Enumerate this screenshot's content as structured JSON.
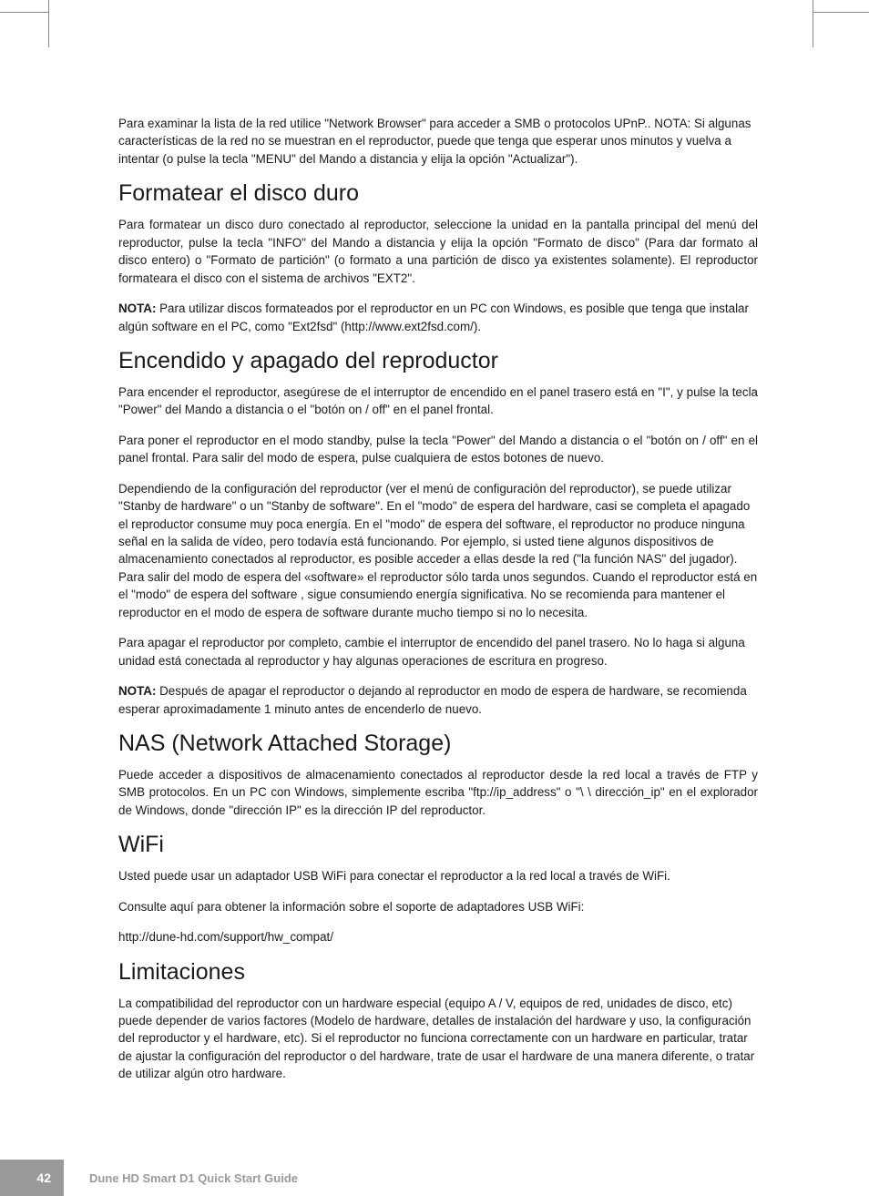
{
  "page": {
    "number": "42",
    "footer_title": "Dune HD Smart D1 Quick Start Guide",
    "background_color": "#ffffff",
    "text_color": "#1a1a1a",
    "footer_bg": "#9a9a9a",
    "footer_text": "#ffffff",
    "body_fontsize": 13.4,
    "heading_fontsize": 25
  },
  "intro": "Para examinar la lista de la red utilice \"Network Browser\" para acceder a SMB o protocolos UPnP.. NOTA: Si algunas características de la red no se muestran en el reproductor, puede que tenga que esperar unos minutos y vuelva a intentar (o pulse la tecla \"MENU\" del Mando a distancia y elija la opción \"Actualizar\").",
  "sec1": {
    "title": "Formatear el disco duro",
    "p1": "Para formatear un disco duro conectado al reproductor, seleccione la unidad en la pantalla principal del menú del reproductor, pulse la tecla \"INFO\" del Mando a distancia y elija la opción \"Formato de disco\" (Para dar formato al disco entero) o \"Formato de partición\" (o formato a una partición de disco ya existentes solamente). El reproductor formateara el disco con el sistema de archivos \"EXT2\".",
    "p2_bold": "NOTA:",
    "p2_rest": " Para utilizar discos formateados por el reproductor en un PC con Windows, es posible que tenga que instalar algún software en el PC, como \"Ext2fsd\" (http://www.ext2fsd.com/)."
  },
  "sec2": {
    "title": "Encendido y apagado del reproductor",
    "p1": "Para encender el reproductor, asegúrese de el interruptor de encendido en el panel trasero está en \"I\", y pulse la tecla \"Power\" del Mando a distancia o el \"botón on / off\" en el panel frontal.",
    "p2": "Para poner el reproductor en el modo standby, pulse la tecla \"Power\" del Mando a distancia o el \"botón on / off\" en el panel frontal. Para salir del modo de espera, pulse cualquiera de estos botones de nuevo.",
    "p3": "Dependiendo de la configuración del reproductor (ver el menú de configuración del reproductor), se puede utilizar \"Stanby de hardware\" o un \"Stanby de software\". En el \"modo\" de espera del hardware, casi se completa el apagado el reproductor consume muy poca energía. En el \"modo\" de espera del  software, el reproductor no produce ninguna señal en la salida de vídeo, pero todavía está funcionando. Por ejemplo, si usted tiene algunos dispositivos de almacenamiento conectados al reproductor, es posible acceder a ellas desde la red (\"la función NAS\" del jugador). Para salir del modo de espera del «software» el reproductor sólo tarda unos segundos. Cuando el reproductor está en el \"modo\" de espera del software , sigue consumiendo energía significativa. No se recomienda para mantener el reproductor en el modo de espera de software durante mucho tiempo si no lo necesita.",
    "p4": "Para apagar el reproductor por completo, cambie el interruptor de encendido del panel trasero. No lo haga si alguna unidad está conectada al reproductor y hay algunas operaciones de escritura en progreso.",
    "p5_bold": "NOTA:",
    "p5_rest": " Después de apagar el reproductor o dejando al reproductor en modo de espera de hardware, se recomienda esperar aproximadamente 1 minuto antes de encenderlo de nuevo."
  },
  "sec3": {
    "title": "NAS (Network Attached Storage)",
    "p1": "Puede acceder a dispositivos de almacenamiento conectados al reproductor desde la red local a través de FTP y SMB protocolos. En un PC con Windows, simplemente escriba \"ftp://ip_address\" o \"\\ \\ dirección_ip\" en el explorador de Windows, donde \"dirección IP\" es la dirección IP del reproductor."
  },
  "sec4": {
    "title": "WiFi",
    "p1": "Usted puede usar un adaptador USB WiFi para conectar el reproductor a la red local a través de WiFi.",
    "p2": "Consulte aquí para obtener la información sobre el soporte de adaptadores USB WiFi:",
    "p3": "http://dune-hd.com/support/hw_compat/"
  },
  "sec5": {
    "title": "Limitaciones",
    "p1": "La compatibilidad del reproductor con un hardware especial (equipo A / V, equipos de red, unidades de disco, etc) puede depender de varios factores (Modelo de hardware, detalles de instalación del hardware y uso, la configuración del reproductor y el hardware, etc). Si el reproductor no funciona correctamente con un hardware en particular, tratar de ajustar la configuración del reproductor o del hardware, trate de usar el hardware de una manera diferente, o tratar de utilizar algún otro hardware."
  }
}
